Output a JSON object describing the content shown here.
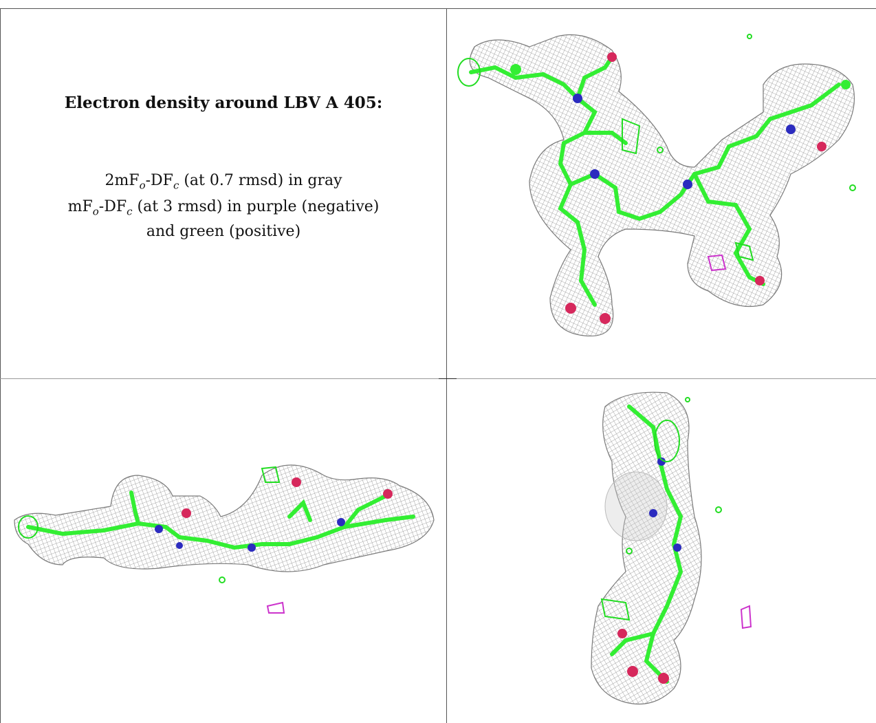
{
  "caption": {
    "title": "Electron density around LBV A 405:",
    "line1": {
      "a": "2mF",
      "o": "o",
      "b": "-DF",
      "c": "c",
      "rest": " (at 0.7 rmsd) in gray"
    },
    "line2": {
      "a": "mF",
      "o": "o",
      "b": "-DF",
      "c": "c",
      "rest": " (at 3 rmsd) in purple (negative)"
    },
    "line3": "and green (positive)"
  },
  "colors": {
    "mesh": "#8c8c8c",
    "carbon": "#33ee33",
    "nitrogen": "#2b2bbf",
    "oxygen": "#d6285c",
    "positive_density": "#22dd22",
    "negative_density": "#cc33cc",
    "border": "#555555"
  },
  "panels": [
    {
      "name": "view-top-right"
    },
    {
      "name": "view-bottom-left"
    },
    {
      "name": "view-bottom-right"
    }
  ]
}
